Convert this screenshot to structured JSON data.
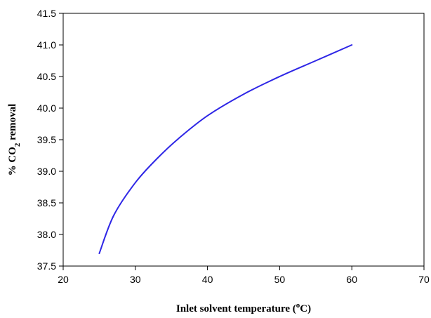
{
  "chart_data": {
    "type": "line",
    "xlabel": {
      "prefix": "Inlet solvent temperature (",
      "superscript": "o",
      "suffix": "C)"
    },
    "ylabel": {
      "prefix": "% CO",
      "subscript": "2",
      "suffix": " removal"
    },
    "xlim": [
      20,
      70
    ],
    "ylim": [
      37.5,
      41.5
    ],
    "xticks": [
      20,
      30,
      40,
      50,
      60,
      70
    ],
    "xtick_labels": [
      "20",
      "30",
      "40",
      "50",
      "60",
      "70"
    ],
    "yticks": [
      37.5,
      38.0,
      38.5,
      39.0,
      39.5,
      40.0,
      40.5,
      41.0,
      41.5
    ],
    "ytick_labels": [
      "37.5",
      "38.0",
      "38.5",
      "39.0",
      "39.5",
      "40.0",
      "40.5",
      "41.0",
      "41.5"
    ],
    "grid": false,
    "series": [
      {
        "color": "#2e26e6",
        "x": [
          25,
          27,
          30,
          33,
          36,
          40,
          45,
          50,
          55,
          60
        ],
        "y": [
          37.7,
          38.3,
          38.82,
          39.2,
          39.52,
          39.88,
          40.22,
          40.5,
          40.75,
          41.0
        ]
      }
    ]
  }
}
